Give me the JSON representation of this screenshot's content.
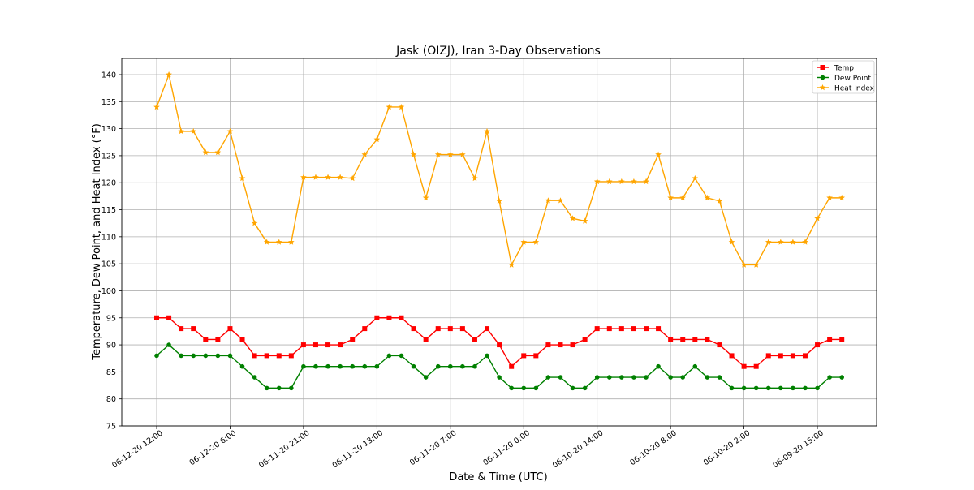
{
  "chart_data": {
    "type": "line",
    "title": "Jask (OIZJ), Iran 3-Day Observations",
    "xlabel": "Date & Time (UTC)",
    "ylabel": "Temperature, Dew Point, and Heat Index (°F)",
    "ylim": [
      75,
      143
    ],
    "yticks": [
      75,
      80,
      85,
      90,
      95,
      100,
      105,
      110,
      115,
      120,
      125,
      130,
      135,
      140
    ],
    "grid": true,
    "legend_position": "top-right",
    "x_tick_labels": [
      {
        "index": 0,
        "label": "06-12-20 12:00"
      },
      {
        "index": 6,
        "label": "06-12-20 6:00"
      },
      {
        "index": 12,
        "label": "06-11-20 21:00"
      },
      {
        "index": 18,
        "label": "06-11-20 13:00"
      },
      {
        "index": 24,
        "label": "06-11-20 7:00"
      },
      {
        "index": 30,
        "label": "06-11-20 0:00"
      },
      {
        "index": 36,
        "label": "06-10-20 14:00"
      },
      {
        "index": 42,
        "label": "06-10-20 8:00"
      },
      {
        "index": 48,
        "label": "06-10-20 2:00"
      },
      {
        "index": 54,
        "label": "06-09-20 15:00"
      }
    ],
    "series": [
      {
        "name": "Temp",
        "color": "#ff0000",
        "marker": "square",
        "values": [
          95,
          95,
          93,
          93,
          91,
          91,
          93,
          91,
          88,
          88,
          88,
          88,
          90,
          90,
          90,
          90,
          91,
          93,
          95,
          95,
          95,
          93,
          91,
          93,
          93,
          93,
          91,
          93,
          90,
          86,
          88,
          88,
          90,
          90,
          90,
          91,
          93,
          93,
          93,
          93,
          93,
          93,
          91,
          91,
          91,
          91,
          90,
          88,
          86,
          86,
          88,
          88,
          88,
          88,
          90,
          91,
          91
        ]
      },
      {
        "name": "Dew Point",
        "color": "#008000",
        "marker": "circle",
        "values": [
          88,
          90,
          88,
          88,
          88,
          88,
          88,
          86,
          84,
          82,
          82,
          82,
          86,
          86,
          86,
          86,
          86,
          86,
          86,
          88,
          88,
          86,
          84,
          86,
          86,
          86,
          86,
          88,
          84,
          82,
          82,
          82,
          84,
          84,
          82,
          82,
          84,
          84,
          84,
          84,
          84,
          86,
          84,
          84,
          86,
          84,
          84,
          82,
          82,
          82,
          82,
          82,
          82,
          82,
          82,
          84,
          84
        ]
      },
      {
        "name": "Heat Index",
        "color": "#ffa500",
        "marker": "star",
        "values": [
          134,
          140,
          129.5,
          129.5,
          125.6,
          125.6,
          129.5,
          120.8,
          112.5,
          109,
          109,
          109,
          121,
          121,
          121,
          121,
          120.8,
          125.2,
          128,
          134,
          134,
          125.2,
          117.2,
          125.2,
          125.2,
          125.2,
          120.8,
          129.5,
          116.6,
          104.8,
          109,
          109,
          116.7,
          116.7,
          113.4,
          112.9,
          120.2,
          120.2,
          120.2,
          120.2,
          120.2,
          125.2,
          117.2,
          117.2,
          120.8,
          117.2,
          116.6,
          109,
          104.8,
          104.8,
          109,
          109,
          109,
          109,
          113.4,
          117.2,
          117.2
        ]
      }
    ]
  }
}
